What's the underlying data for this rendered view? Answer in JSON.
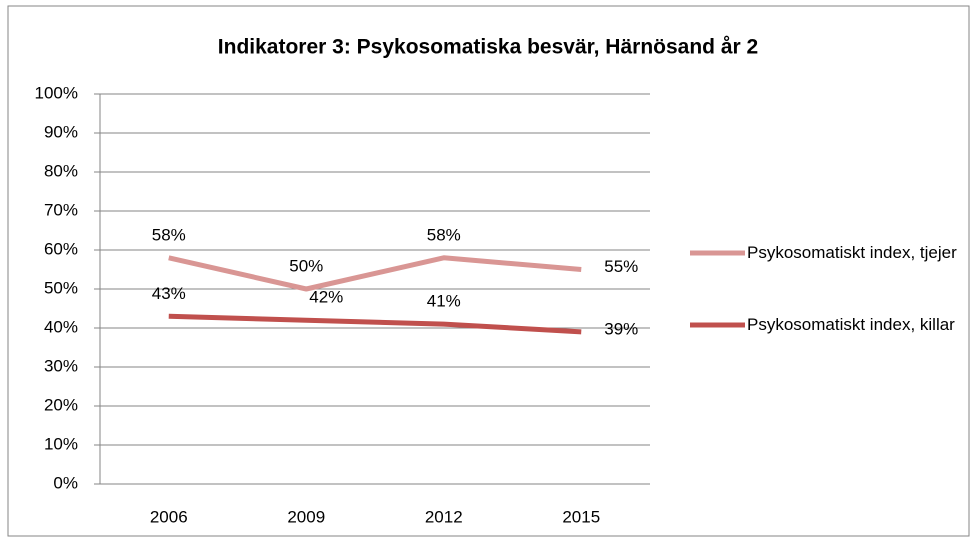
{
  "chart_data": {
    "type": "line",
    "title": "Indikatorer 3: Psykosomatiska besvär, Härnösand år 2",
    "categories": [
      "2006",
      "2009",
      "2012",
      "2015"
    ],
    "series": [
      {
        "name": "Psykosomatiskt index, tjejer",
        "color": "#d99694",
        "values": [
          58,
          50,
          58,
          55
        ],
        "value_labels": [
          "58%",
          "50%",
          "58%",
          "55%"
        ]
      },
      {
        "name": "Psykosomatiskt index, killar",
        "color": "#c0504d",
        "values": [
          43,
          42,
          41,
          39
        ],
        "value_labels": [
          "43%",
          "42%",
          "41%",
          "39%"
        ]
      }
    ],
    "ylim": [
      0,
      100
    ],
    "yticks": [
      {
        "value": 0,
        "label": "0%"
      },
      {
        "value": 10,
        "label": "10%"
      },
      {
        "value": 20,
        "label": "20%"
      },
      {
        "value": 30,
        "label": "30%"
      },
      {
        "value": 40,
        "label": "40%"
      },
      {
        "value": 50,
        "label": "50%"
      },
      {
        "value": 60,
        "label": "60%"
      },
      {
        "value": 70,
        "label": "70%"
      },
      {
        "value": 80,
        "label": "80%"
      },
      {
        "value": 90,
        "label": "90%"
      },
      {
        "value": 100,
        "label": "100%"
      }
    ],
    "grid": true,
    "legend": "right"
  }
}
